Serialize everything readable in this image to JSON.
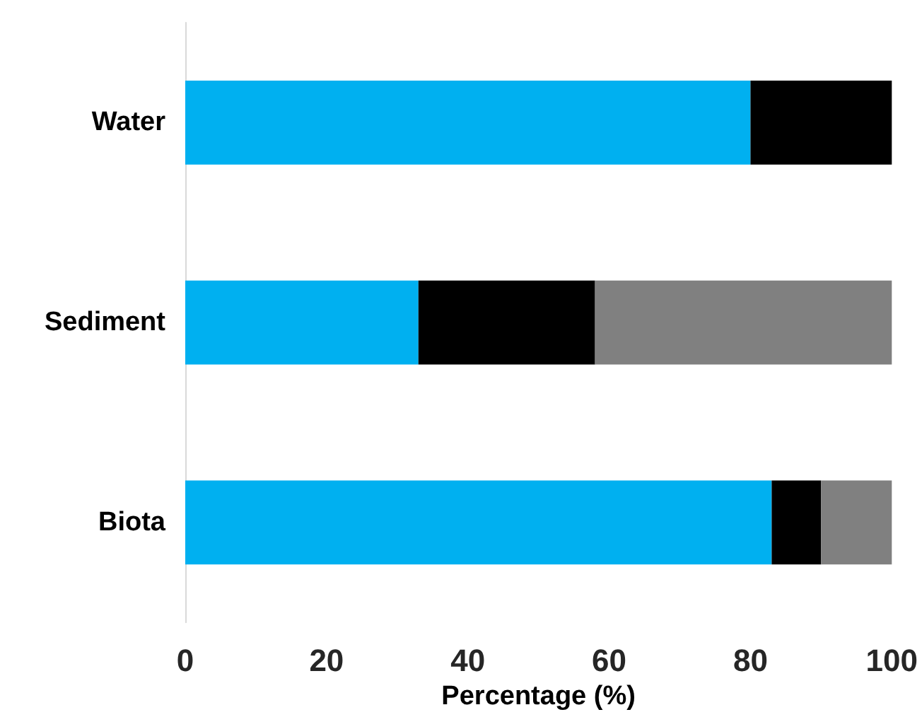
{
  "chart_data": {
    "type": "bar",
    "orientation": "horizontal",
    "stacked": true,
    "xlabel": "Percentage (%)",
    "categories": [
      "Water",
      "Sediment",
      "Biota"
    ],
    "series": [
      {
        "color": "#00b0f0",
        "values": [
          80,
          33,
          83
        ]
      },
      {
        "color": "#000000",
        "values": [
          20,
          25,
          7
        ]
      },
      {
        "color": "#808080",
        "values": [
          0,
          42,
          10
        ]
      }
    ],
    "xlim": [
      0,
      100
    ],
    "xticks": [
      0,
      20,
      40,
      60,
      80,
      100
    ],
    "grid": false
  }
}
